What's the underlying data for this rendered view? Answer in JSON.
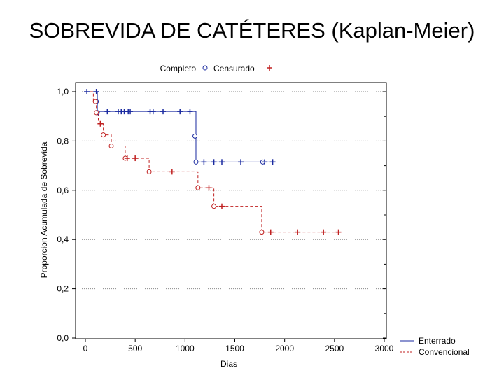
{
  "slide": {
    "title": "SOBREVIDA DE CATÉTERES (Kaplan-Meier)"
  },
  "chart_data": {
    "type": "line",
    "subtype": "kaplan-meier",
    "xlabel": "Dias",
    "ylabel": "Proporcion Acumulada de Sobrevida",
    "xlim": [
      0,
      3000
    ],
    "ylim": [
      0,
      1
    ],
    "x_ticks": [
      "0",
      "500",
      "1000",
      "1500",
      "2000",
      "2500",
      "3000"
    ],
    "y_ticks": [
      "0,0",
      "0,2",
      "0,4",
      "0,6",
      "0,8",
      "1,0"
    ],
    "grid": true,
    "marker_legend": {
      "complete_label": "Completo",
      "censored_label": "Censurado"
    },
    "series_legend_position": "bottom-right",
    "series": [
      {
        "name": "Enterrado",
        "color": "#1a2aa0",
        "line_style": "solid",
        "steps": [
          [
            0,
            1.0
          ],
          [
            120,
            0.92
          ],
          [
            1110,
            0.715
          ],
          [
            1880,
            0.715
          ]
        ],
        "events": [
          [
            110,
            0.96
          ],
          [
            120,
            0.915
          ],
          [
            1100,
            0.82
          ],
          [
            1110,
            0.715
          ],
          [
            1780,
            0.715
          ]
        ],
        "censored": [
          [
            15,
            1.0
          ],
          [
            110,
            1.0
          ],
          [
            220,
            0.92
          ],
          [
            330,
            0.92
          ],
          [
            360,
            0.92
          ],
          [
            390,
            0.92
          ],
          [
            430,
            0.92
          ],
          [
            450,
            0.92
          ],
          [
            650,
            0.92
          ],
          [
            680,
            0.92
          ],
          [
            780,
            0.92
          ],
          [
            950,
            0.92
          ],
          [
            1050,
            0.92
          ],
          [
            1190,
            0.715
          ],
          [
            1290,
            0.715
          ],
          [
            1370,
            0.715
          ],
          [
            1560,
            0.715
          ],
          [
            1800,
            0.715
          ],
          [
            1880,
            0.715
          ]
        ]
      },
      {
        "name": "Convencional",
        "color": "#c02020",
        "line_style": "dashed",
        "steps": [
          [
            0,
            1.0
          ],
          [
            80,
            0.96
          ],
          [
            110,
            0.915
          ],
          [
            130,
            0.87
          ],
          [
            180,
            0.825
          ],
          [
            260,
            0.78
          ],
          [
            400,
            0.73
          ],
          [
            640,
            0.675
          ],
          [
            1130,
            0.61
          ],
          [
            1290,
            0.535
          ],
          [
            1770,
            0.43
          ],
          [
            2540,
            0.43
          ]
        ],
        "events": [
          [
            100,
            0.96
          ],
          [
            110,
            0.915
          ],
          [
            180,
            0.825
          ],
          [
            260,
            0.78
          ],
          [
            400,
            0.73
          ],
          [
            640,
            0.675
          ],
          [
            1130,
            0.61
          ],
          [
            1290,
            0.535
          ],
          [
            1770,
            0.43
          ]
        ],
        "censored": [
          [
            150,
            0.87
          ],
          [
            420,
            0.73
          ],
          [
            500,
            0.73
          ],
          [
            870,
            0.675
          ],
          [
            1240,
            0.61
          ],
          [
            1370,
            0.535
          ],
          [
            1860,
            0.43
          ],
          [
            2130,
            0.43
          ],
          [
            2390,
            0.43
          ],
          [
            2540,
            0.43
          ]
        ]
      }
    ]
  }
}
